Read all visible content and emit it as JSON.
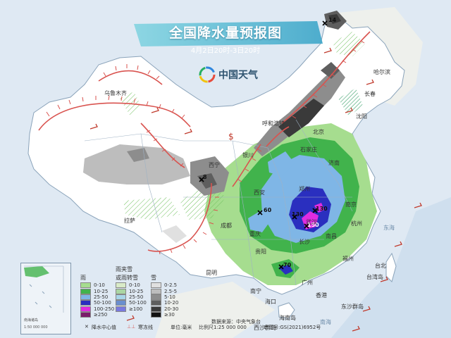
{
  "header": {
    "title": "全国降水量预报图",
    "subtitle": "4月2日20时-3日20时"
  },
  "logo": {
    "text": "中国天气"
  },
  "icons": {
    "logo": "rainbow-swirl-icon",
    "center": "precip-center-x-icon",
    "gale": "gale-barb-icon"
  },
  "colors": {
    "ocean": "#dfe9f3",
    "land": "#ffffff",
    "border_red": "#d9534f",
    "banner": "#7fd3e0"
  },
  "centers": [
    {
      "value": "14"
    },
    {
      "value": "8"
    },
    {
      "value": "60"
    },
    {
      "value": "130"
    },
    {
      "value": "130"
    },
    {
      "value": "150"
    },
    {
      "value": "70"
    }
  ],
  "places": {
    "harbin": "哈尔滨",
    "changchun": "长春",
    "shenyang": "沈阳",
    "hohhot": "呼和浩特",
    "beijing": "北京",
    "jinan": "济南",
    "shijiazhuang": "石家庄",
    "xining": "西宁",
    "yinchuan": "银川",
    "lhasa": "拉萨",
    "chengdu": "成都",
    "chongqing": "重庆",
    "xian": "西安",
    "zhengzhou": "郑州",
    "wuhan": "武汉",
    "nanjing": "南京",
    "hangzhou": "杭州",
    "fuzhou": "福州",
    "taipei": "台北",
    "taiwan": "台湾岛",
    "nanchang": "南昌",
    "changsha": "长沙",
    "guiyang": "贵阳",
    "kunming": "昆明",
    "nanning": "南宁",
    "guangzhou": "广州",
    "hongkong": "香港",
    "haikou": "海口",
    "urumqi": "乌鲁木齐",
    "hainan": "海南岛",
    "east_sea": "东海",
    "south_sea": "南海",
    "dongsha": "东沙群岛",
    "xisha": "西沙群岛"
  },
  "legend": {
    "rain_title": "雨",
    "sleet_title": "雨夹雪",
    "sleet_title2": "或雨转雪",
    "snow_title": "雪",
    "rain": [
      {
        "label": "0-10",
        "color": "#a6dd8f"
      },
      {
        "label": "10-25",
        "color": "#41b34c"
      },
      {
        "label": "25-50",
        "color": "#7fb6e6"
      },
      {
        "label": "50-100",
        "color": "#2a2fbf"
      },
      {
        "label": "100-250",
        "color": "#e02ce0"
      },
      {
        "label": "≥250",
        "color": "#7a1c6a"
      }
    ],
    "sleet": [
      {
        "label": "0-10",
        "color": "#d9ebc8"
      },
      {
        "label": "10-25",
        "color": "#aad6a3"
      },
      {
        "label": "25-50",
        "color": "#a8d5e8"
      },
      {
        "label": "50-100",
        "color": "#6a8fcf"
      },
      {
        "label": "≥100",
        "color": "#7a7adf"
      }
    ],
    "snow": [
      {
        "label": "0-2.5",
        "color": "#e0e0e0"
      },
      {
        "label": "2.5-5",
        "color": "#bdbdbd"
      },
      {
        "label": "5-10",
        "color": "#8d8d8d"
      },
      {
        "label": "10-20",
        "color": "#5e5e5e"
      },
      {
        "label": "20-30",
        "color": "#3a3a3a"
      },
      {
        "label": "≥30",
        "color": "#121212"
      }
    ]
  },
  "inset": {
    "caption": "南海诸岛",
    "scale": "1:50 000 000"
  },
  "footer": {
    "source": "数据来源：中央气象台",
    "center": "降水中心值",
    "gale": "寒冻线",
    "unit": "单位:毫米",
    "scale": "比例尺1:25 000 000",
    "approval": "审图号:GS(2021)6952号"
  }
}
